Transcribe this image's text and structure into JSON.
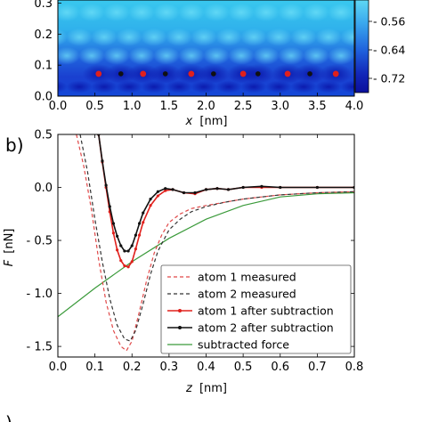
{
  "chart_data": [
    {
      "type": "heatmap",
      "ytick_labels": [
        "0.0",
        "0.1",
        "0.2",
        "0.3"
      ],
      "xtick_labels": [
        "0.0",
        "0.5",
        "1.0",
        "1.5",
        "2.0",
        "2.5",
        "3.0",
        "3.5",
        "4.0"
      ],
      "xlabel_var": "x",
      "xlabel_unit": "[nm]",
      "xlim": [
        0.0,
        4.0
      ],
      "ylim": [
        0.0,
        0.31
      ],
      "colorbar_tick_labels": [
        "- 0.56",
        "- 0.64",
        "- 0.72"
      ],
      "colorbar_values": [
        -0.56,
        -0.64,
        -0.72
      ],
      "colors": {
        "high": "#39c8ee",
        "mid": "#1a68e0",
        "low": "#0b0f9c"
      },
      "atoms_red": {
        "x": [
          0.55,
          1.15,
          1.8,
          2.5,
          3.1,
          3.75
        ],
        "y": 0.072
      },
      "atoms_black": {
        "x": [
          0.85,
          1.45,
          2.1,
          2.7,
          3.4
        ],
        "y": 0.072
      }
    },
    {
      "type": "line",
      "panel_label": "b)",
      "xlabel_var": "z",
      "xlabel_unit": "[nm]",
      "ylabel_var": "F",
      "ylabel_unit": "[nN]",
      "xlim": [
        0.0,
        0.8
      ],
      "ylim": [
        -1.6,
        0.5
      ],
      "xtick_labels": [
        "0.0",
        "0.1",
        "0.2",
        "0.3",
        "0.4",
        "0.5",
        "0.6",
        "0.7",
        "0.8"
      ],
      "ytick_labels": [
        "0.5",
        "0.0",
        "- 0.5",
        "- 1.0",
        "- 1.5"
      ],
      "ytick_values": [
        0.5,
        0.0,
        -0.5,
        -1.0,
        -1.5
      ],
      "legend_position": "lower-right",
      "series": [
        {
          "name": "atom 1 measured",
          "color": "#e04848",
          "style": "dashed",
          "x": [
            0.05,
            0.07,
            0.09,
            0.11,
            0.13,
            0.15,
            0.17,
            0.185,
            0.2,
            0.22,
            0.24,
            0.26,
            0.28,
            0.3,
            0.33,
            0.36,
            0.4,
            0.45,
            0.5,
            0.55,
            0.6,
            0.7,
            0.8
          ],
          "y": [
            0.5,
            0.2,
            -0.2,
            -0.68,
            -1.08,
            -1.35,
            -1.5,
            -1.54,
            -1.45,
            -1.17,
            -0.87,
            -0.62,
            -0.45,
            -0.33,
            -0.25,
            -0.2,
            -0.17,
            -0.14,
            -0.11,
            -0.09,
            -0.07,
            -0.05,
            -0.04
          ]
        },
        {
          "name": "atom 2 measured",
          "color": "#333333",
          "style": "dashed",
          "x": [
            0.06,
            0.08,
            0.1,
            0.12,
            0.14,
            0.16,
            0.18,
            0.195,
            0.21,
            0.23,
            0.25,
            0.27,
            0.3,
            0.33,
            0.36,
            0.4,
            0.45,
            0.5,
            0.55,
            0.6,
            0.7,
            0.8
          ],
          "y": [
            0.5,
            0.15,
            -0.3,
            -0.7,
            -1.05,
            -1.3,
            -1.43,
            -1.45,
            -1.35,
            -1.1,
            -0.82,
            -0.6,
            -0.4,
            -0.3,
            -0.23,
            -0.18,
            -0.14,
            -0.11,
            -0.09,
            -0.07,
            -0.05,
            -0.04
          ]
        },
        {
          "name": "atom 1 after subtraction",
          "color": "#e0201c",
          "style": "solid-marker",
          "x": [
            0.11,
            0.12,
            0.13,
            0.14,
            0.15,
            0.16,
            0.17,
            0.18,
            0.19,
            0.2,
            0.21,
            0.22,
            0.23,
            0.25,
            0.27,
            0.29,
            0.31,
            0.34,
            0.37,
            0.4,
            0.43,
            0.46,
            0.5,
            0.55,
            0.6,
            0.7,
            0.8
          ],
          "y": [
            0.5,
            0.24,
            0.0,
            -0.23,
            -0.43,
            -0.59,
            -0.69,
            -0.74,
            -0.75,
            -0.7,
            -0.58,
            -0.45,
            -0.33,
            -0.17,
            -0.08,
            -0.03,
            -0.02,
            -0.05,
            -0.06,
            -0.02,
            -0.01,
            -0.02,
            0.0,
            0.0,
            0.0,
            0.0,
            0.0
          ]
        },
        {
          "name": "atom 2 after subtraction",
          "color": "#111111",
          "style": "solid-marker",
          "x": [
            0.11,
            0.12,
            0.13,
            0.14,
            0.15,
            0.16,
            0.17,
            0.18,
            0.19,
            0.2,
            0.21,
            0.22,
            0.23,
            0.25,
            0.27,
            0.29,
            0.31,
            0.34,
            0.37,
            0.4,
            0.43,
            0.46,
            0.5,
            0.55,
            0.6,
            0.7,
            0.8
          ],
          "y": [
            0.5,
            0.25,
            0.02,
            -0.18,
            -0.34,
            -0.46,
            -0.55,
            -0.6,
            -0.6,
            -0.55,
            -0.45,
            -0.34,
            -0.24,
            -0.11,
            -0.04,
            -0.01,
            -0.02,
            -0.05,
            -0.05,
            -0.02,
            -0.01,
            -0.02,
            0.0,
            0.01,
            0.0,
            0.0,
            0.0
          ]
        },
        {
          "name": "subtracted force",
          "color": "#3a9a3a",
          "style": "solid",
          "x": [
            0.0,
            0.1,
            0.2,
            0.3,
            0.4,
            0.5,
            0.6,
            0.7,
            0.8
          ],
          "y": [
            -1.22,
            -0.95,
            -0.7,
            -0.48,
            -0.3,
            -0.17,
            -0.09,
            -0.06,
            -0.05
          ]
        }
      ]
    }
  ]
}
